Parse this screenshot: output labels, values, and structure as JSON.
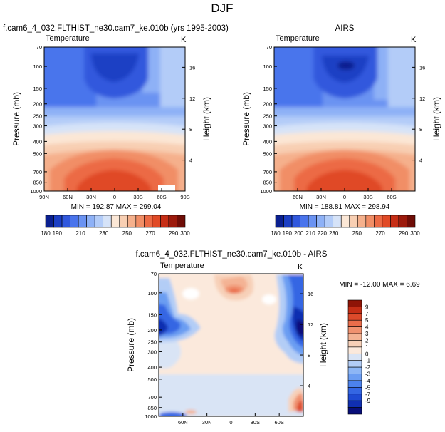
{
  "page": {
    "title": "DJF"
  },
  "panels": [
    {
      "title": "f.cam6_4_032.FLTHIST_ne30.cam7_ke.010b (yrs 1995-2003)",
      "left_label": "Temperature",
      "right_label": "K",
      "stats": "MIN = 192.87  MAX = 299.04"
    },
    {
      "title": "AIRS",
      "left_label": "Temperature",
      "right_label": "K",
      "stats": "MIN = 188.81  MAX = 298.94"
    },
    {
      "title": "f.cam6_4_032.FLTHIST_ne30.cam7_ke.010b - AIRS",
      "left_label": "Temperature",
      "right_label": "K",
      "stats": "MIN = -12.00  MAX =   6.69"
    }
  ],
  "colors": {
    "abs_palette": [
      "#0a1f8f",
      "#1c3fc4",
      "#3158dd",
      "#4a74ec",
      "#6b93f2",
      "#8eb1f6",
      "#b3ccf8",
      "#d6e3f8",
      "#fbe7d6",
      "#f8cfb3",
      "#f5b08c",
      "#f18e66",
      "#ec6a44",
      "#e04a26",
      "#c62e15",
      "#9c1a0c",
      "#6f0d07"
    ],
    "diff_palette": [
      "#080f7a",
      "#102fb1",
      "#1e4ad3",
      "#3466e3",
      "#4c82ec",
      "#6b9df2",
      "#8db6f5",
      "#b3cdf6",
      "#d9e4f5",
      "#fbe9dc",
      "#f7d0b8",
      "#f4b394",
      "#f09270",
      "#ea6d4b",
      "#dc4a2b",
      "#c52e16",
      "#8f1407"
    ]
  },
  "chart_data": [
    {
      "type": "heatmap",
      "title": "f.cam6_4_032.FLTHIST_ne30.cam7_ke.010b (yrs 1995-2003)",
      "xlabel": "",
      "ylabel": "Pressure (mb)",
      "y2label": "Height (km)",
      "x_ticks": [
        "90N",
        "60N",
        "30N",
        "0",
        "30S",
        "60S",
        "90S"
      ],
      "y_ticks": [
        70,
        100,
        150,
        200,
        250,
        300,
        400,
        500,
        700,
        850,
        1000
      ],
      "y2_ticks": [
        16,
        12,
        8,
        4
      ],
      "ylim": [
        70,
        1000
      ],
      "y_scale": "log",
      "colorbar": {
        "levels": [
          180,
          190,
          200,
          210,
          220,
          230,
          240,
          250,
          260,
          270,
          280,
          290,
          300
        ],
        "labels": [
          "180",
          "190",
          "210",
          "230",
          "250",
          "270",
          "290",
          "300"
        ]
      },
      "min": 192.87,
      "max": 299.04
    },
    {
      "type": "heatmap",
      "title": "AIRS",
      "xlabel": "",
      "ylabel": "Pressure (mb)",
      "y2label": "Height (km)",
      "x_ticks": [
        "60N",
        "30N",
        "0",
        "30S",
        "60S"
      ],
      "y_ticks": [
        70,
        100,
        150,
        200,
        250,
        300,
        400,
        500,
        700,
        850,
        1000
      ],
      "y2_ticks": [
        16,
        12,
        8,
        4
      ],
      "ylim": [
        70,
        1000
      ],
      "y_scale": "log",
      "colorbar": {
        "levels": [
          180,
          190,
          200,
          210,
          220,
          230,
          240,
          250,
          260,
          270,
          280,
          290,
          300
        ],
        "labels": [
          "180",
          "190",
          "200",
          "210",
          "220",
          "230",
          "250",
          "270",
          "290",
          "300"
        ]
      },
      "min": 188.81,
      "max": 298.94
    },
    {
      "type": "heatmap",
      "title": "f.cam6_4_032.FLTHIST_ne30.cam7_ke.010b - AIRS",
      "xlabel": "",
      "ylabel": "Pressure (mb)",
      "y2label": "Height (km)",
      "x_ticks": [
        "60N",
        "30N",
        "0",
        "30S",
        "60S"
      ],
      "y_ticks": [
        70,
        100,
        150,
        200,
        250,
        300,
        400,
        500,
        700,
        850,
        1000
      ],
      "y2_ticks": [
        16,
        12,
        8,
        4
      ],
      "ylim": [
        70,
        1000
      ],
      "y_scale": "log",
      "colorbar": {
        "levels": [
          9,
          7,
          5,
          4,
          3,
          2,
          1,
          0,
          -1,
          -2,
          -3,
          -4,
          -5,
          -7,
          -9
        ],
        "labels": [
          "9",
          "7",
          "5",
          "4",
          "3",
          "2",
          "1",
          "0",
          "-1",
          "-2",
          "-3",
          "-4",
          "-5",
          "-7",
          "-9"
        ]
      },
      "min": -12.0,
      "max": 6.69
    }
  ]
}
